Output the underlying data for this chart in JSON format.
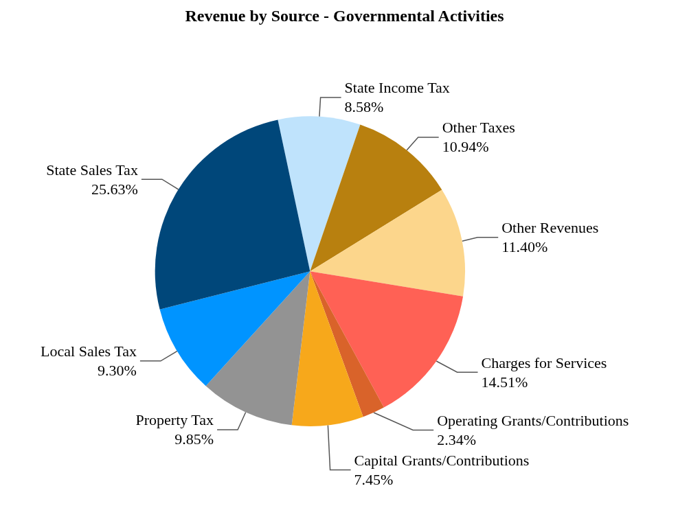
{
  "chart_data": {
    "type": "pie",
    "title": "Revenue by Source - Governmental Activities",
    "categories": [
      "State Income Tax",
      "Other Taxes",
      "Other Revenues",
      "Charges for Services",
      "Operating Grants/Contributions",
      "Capital Grants/Contributions",
      "Property Tax",
      "Local Sales Tax",
      "State Sales Tax"
    ],
    "values": [
      8.58,
      10.94,
      11.4,
      14.51,
      2.34,
      7.45,
      9.85,
      9.3,
      25.63
    ],
    "value_labels": [
      "8.58%",
      "10.94%",
      "11.40%",
      "14.51%",
      "2.34%",
      "7.45%",
      "9.85%",
      "9.30%",
      "25.63%"
    ],
    "colors": [
      "#bfe3fc",
      "#b8800f",
      "#fcd68c",
      "#ff6155",
      "#d9632a",
      "#f7a81b",
      "#939393",
      "#0094ff",
      "#00477a"
    ],
    "legend": false
  }
}
